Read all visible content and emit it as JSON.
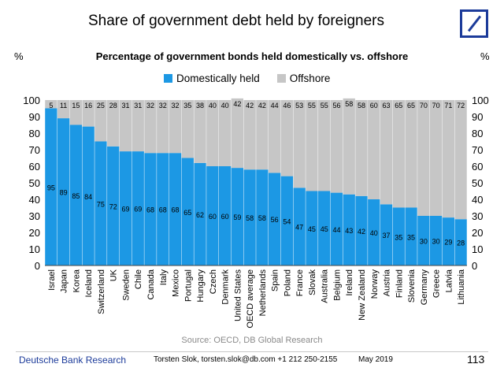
{
  "title": "Share of government debt held by foreigners",
  "left_axis_unit": "%",
  "right_axis_unit": "%",
  "colors": {
    "domestic": "#1c98e4",
    "offshore": "#c6c6c6",
    "brand": "#1c3b9a"
  },
  "footer": {
    "source": "Source: OECD, DB Global Research",
    "company": "Deutsche Bank Research",
    "author": "Torsten Slok, torsten.slok@db.com +1 212 250-2155",
    "date": "May 2019",
    "page": "113"
  },
  "chart_data": {
    "type": "bar",
    "stacked": true,
    "title": "Percentage of  government bonds held domestically vs. offshore",
    "ylim": [
      0,
      100
    ],
    "yticks": [
      0,
      10,
      20,
      30,
      40,
      50,
      60,
      70,
      80,
      90,
      100
    ],
    "legend_position": "top",
    "categories": [
      "Israel",
      "Japan",
      "Korea",
      "Iceland",
      "Switzerland",
      "UK",
      "Sweden",
      "Chile",
      "Canada",
      "Italy",
      "Mexico",
      "Portugal",
      "Hungary",
      "Czech",
      "Denmark",
      "United States",
      "OECD average",
      "Netherlands",
      "Spain",
      "Poland",
      "France",
      "Slovak",
      "Australia",
      "Belgium",
      "Ireland",
      "New Zealand",
      "Norway",
      "Austria",
      "Finland",
      "Slovenia",
      "Germany",
      "Greece",
      "Latvia",
      "Lithuania"
    ],
    "series": [
      {
        "name": "Domestically held",
        "values": [
          95,
          89,
          85,
          84,
          75,
          72,
          69,
          69,
          68,
          68,
          68,
          65,
          62,
          60,
          60,
          59,
          58,
          58,
          56,
          54,
          47,
          45,
          45,
          44,
          43,
          42,
          40,
          37,
          35,
          35,
          30,
          30,
          29,
          28
        ]
      },
      {
        "name": "Offshore",
        "values": [
          5,
          11,
          15,
          16,
          25,
          28,
          31,
          31,
          32,
          32,
          32,
          35,
          38,
          40,
          40,
          42,
          42,
          42,
          44,
          46,
          53,
          55,
          55,
          56,
          58,
          58,
          60,
          63,
          65,
          65,
          70,
          70,
          71,
          72
        ]
      }
    ]
  }
}
